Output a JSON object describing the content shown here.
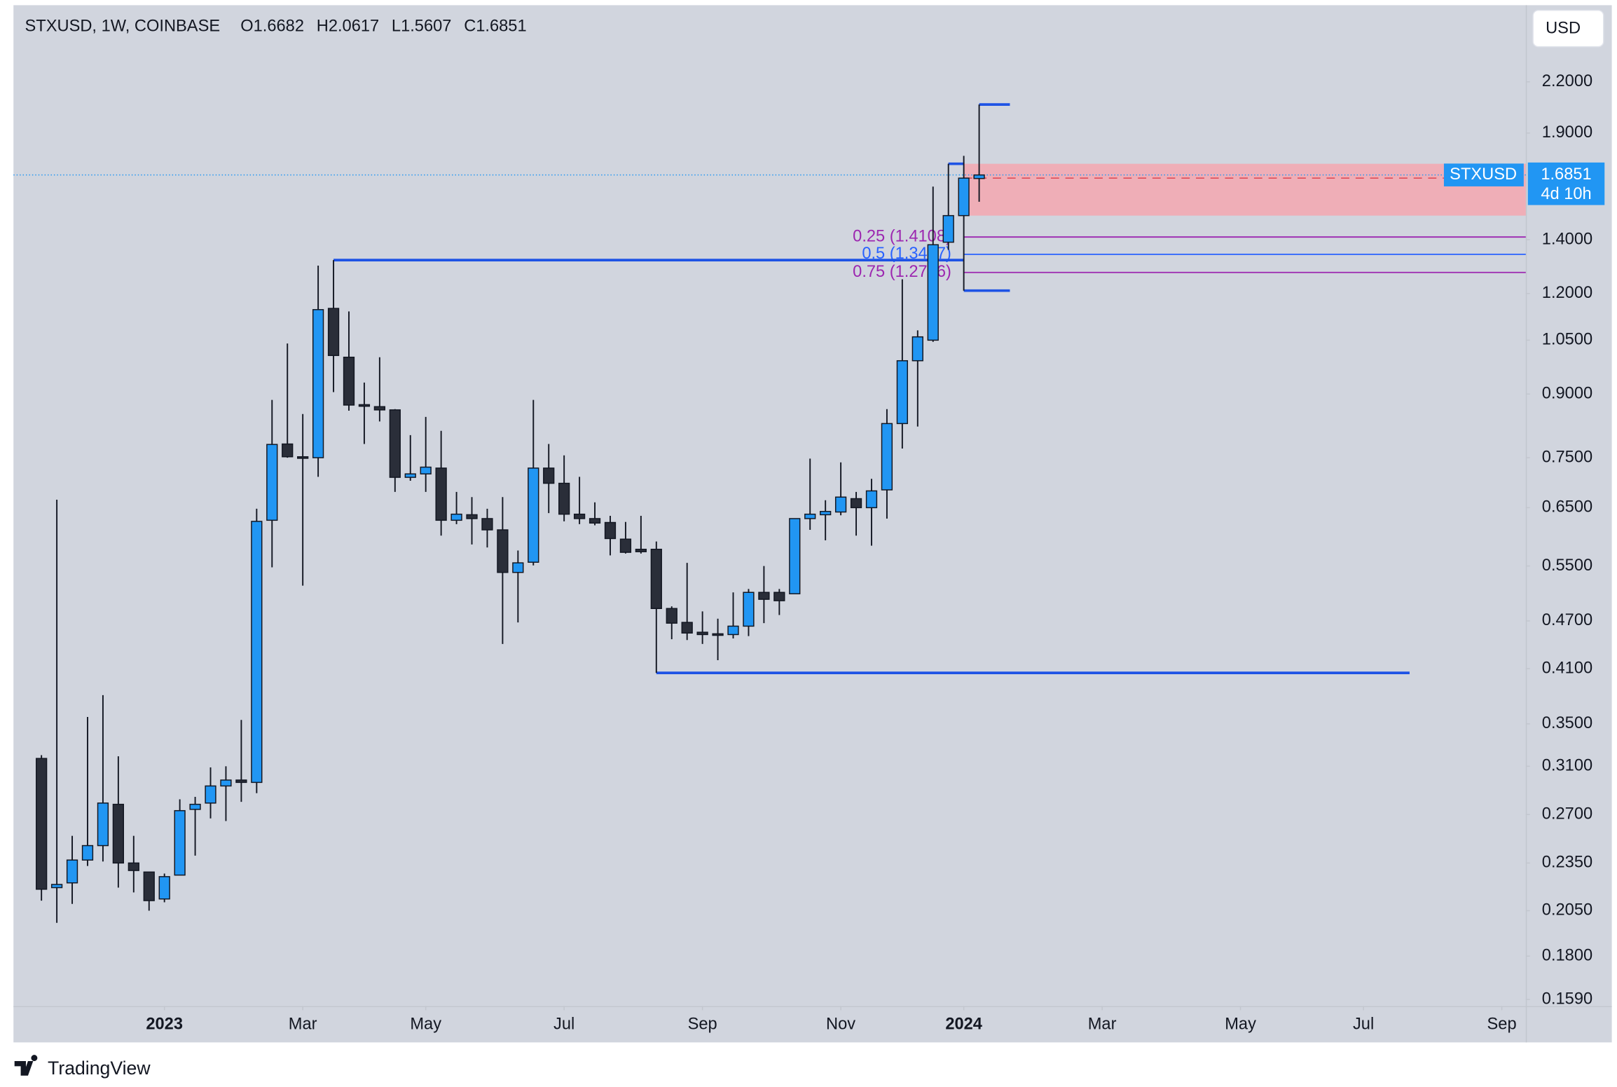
{
  "header": {
    "symbol": "STXUSD, 1W, COINBASE",
    "ohlc": [
      "O1.6682",
      "H2.0617",
      "L1.5607",
      "C1.6851"
    ]
  },
  "currency": "USD",
  "footer": "TradingView",
  "chart_data": {
    "type": "candlestick",
    "log_scale": true,
    "ylim": [
      0.156,
      2.74
    ],
    "yticks": [
      {
        "value": 2.2,
        "label": "2.2000"
      },
      {
        "value": 1.9,
        "label": "1.9000"
      },
      {
        "value": 1.4,
        "label": "1.4000"
      },
      {
        "value": 1.2,
        "label": "1.2000"
      },
      {
        "value": 1.05,
        "label": "1.0500"
      },
      {
        "value": 0.9,
        "label": "0.9000"
      },
      {
        "value": 0.75,
        "label": "0.7500"
      },
      {
        "value": 0.65,
        "label": "0.6500"
      },
      {
        "value": 0.55,
        "label": "0.5500"
      },
      {
        "value": 0.47,
        "label": "0.4700"
      },
      {
        "value": 0.41,
        "label": "0.4100"
      },
      {
        "value": 0.35,
        "label": "0.3500"
      },
      {
        "value": 0.31,
        "label": "0.3100"
      },
      {
        "value": 0.27,
        "label": "0.2700"
      },
      {
        "value": 0.235,
        "label": "0.2350"
      },
      {
        "value": 0.205,
        "label": "0.2050"
      },
      {
        "value": 0.18,
        "label": "0.1800"
      },
      {
        "value": 0.159,
        "label": "0.1590"
      }
    ],
    "xlim": [
      -1.82,
      96.56
    ],
    "xticks": [
      {
        "value": 8,
        "label": "2023"
      },
      {
        "value": 17,
        "label": "Mar"
      },
      {
        "value": 25,
        "label": "May"
      },
      {
        "value": 34,
        "label": "Jul"
      },
      {
        "value": 43,
        "label": "Sep"
      },
      {
        "value": 52,
        "label": "Nov"
      },
      {
        "value": 60,
        "label": "2024"
      },
      {
        "value": 69,
        "label": "Mar"
      },
      {
        "value": 78,
        "label": "May"
      },
      {
        "value": 86,
        "label": "Jul"
      },
      {
        "value": 95,
        "label": "Sep"
      }
    ],
    "colors": {
      "up": "#2196f3",
      "down": "#2a2e39",
      "outline": "#131722"
    },
    "candles": {
      "open": [
        0.317,
        0.219,
        0.222,
        0.237,
        0.247,
        0.278,
        0.235,
        0.229,
        0.212,
        0.227,
        0.274,
        0.279,
        0.293,
        0.298,
        0.296,
        0.627,
        0.78,
        0.752,
        0.75,
        1.15,
        1.0,
        0.873,
        0.868,
        0.86,
        0.709,
        0.716,
        0.728,
        0.627,
        0.637,
        0.63,
        0.61,
        0.54,
        0.556,
        0.728,
        0.697,
        0.638,
        0.63,
        0.623,
        0.594,
        0.577,
        0.577,
        0.487,
        0.468,
        0.455,
        0.453,
        0.452,
        0.463,
        0.51,
        0.51,
        0.508,
        0.63,
        0.637,
        0.642,
        0.667,
        0.65,
        0.684,
        0.827,
        0.99,
        1.05,
        1.39,
        1.5,
        1.6682
      ],
      "high": [
        0.32,
        0.665,
        0.254,
        0.357,
        0.38,
        0.319,
        0.254,
        0.229,
        0.228,
        0.282,
        0.284,
        0.309,
        0.31,
        0.354,
        0.648,
        0.885,
        1.04,
        0.85,
        1.3,
        1.3205,
        1.14,
        0.93,
        1.0,
        0.862,
        0.8,
        0.843,
        0.81,
        0.68,
        0.67,
        0.648,
        0.67,
        0.575,
        0.885,
        0.78,
        0.755,
        0.71,
        0.66,
        0.635,
        0.624,
        0.635,
        0.59,
        0.49,
        0.555,
        0.483,
        0.473,
        0.51,
        0.515,
        0.55,
        0.515,
        0.63,
        0.748,
        0.664,
        0.74,
        0.68,
        0.706,
        0.862,
        1.25,
        1.08,
        1.63,
        1.74,
        1.78,
        2.0617
      ],
      "low": [
        0.211,
        0.198,
        0.209,
        0.233,
        0.236,
        0.219,
        0.216,
        0.205,
        0.21,
        0.227,
        0.24,
        0.267,
        0.265,
        0.28,
        0.287,
        0.548,
        0.75,
        0.52,
        0.71,
        0.905,
        0.858,
        0.78,
        0.832,
        0.68,
        0.702,
        0.68,
        0.6,
        0.62,
        0.585,
        0.58,
        0.44,
        0.468,
        0.551,
        0.64,
        0.625,
        0.62,
        0.618,
        0.567,
        0.57,
        0.57,
        0.405,
        0.446,
        0.445,
        0.44,
        0.42,
        0.447,
        0.45,
        0.467,
        0.478,
        0.508,
        0.61,
        0.592,
        0.636,
        0.6,
        0.583,
        0.63,
        0.77,
        0.82,
        1.045,
        1.36,
        1.21,
        1.5607
      ],
      "close": [
        0.218,
        0.221,
        0.237,
        0.247,
        0.279,
        0.235,
        0.23,
        0.211,
        0.226,
        0.273,
        0.278,
        0.293,
        0.298,
        0.296,
        0.625,
        0.779,
        0.752,
        0.75,
        1.146,
        1.005,
        0.872,
        0.869,
        0.86,
        0.709,
        0.716,
        0.73,
        0.627,
        0.638,
        0.63,
        0.61,
        0.54,
        0.555,
        0.728,
        0.697,
        0.638,
        0.63,
        0.622,
        0.595,
        0.572,
        0.573,
        0.487,
        0.467,
        0.454,
        0.452,
        0.452,
        0.463,
        0.51,
        0.5,
        0.498,
        0.63,
        0.638,
        0.643,
        0.67,
        0.65,
        0.682,
        0.827,
        0.99,
        1.06,
        1.38,
        1.5,
        1.67,
        1.6851
      ]
    },
    "levels": [
      {
        "value": 1.3205,
        "x": [
          19,
          60
        ]
      },
      {
        "value": 0.405,
        "x": [
          40,
          89
        ]
      },
      {
        "value": 2.0617,
        "x": [
          61,
          63
        ]
      },
      {
        "value": 1.21,
        "x": [
          60,
          63
        ]
      },
      {
        "value": 1.74,
        "x": [
          59,
          60
        ]
      }
    ],
    "fib_levels": [
      {
        "label": "0.25 (1.4108)",
        "value": 1.4108,
        "color": "#9c27b0",
        "start": 60
      },
      {
        "label": "0.5 (1.3427)",
        "value": 1.3427,
        "color": "#2962ff",
        "start": 60
      },
      {
        "label": "0.75 (1.2746)",
        "value": 1.2746,
        "color": "#9c27b0",
        "start": 60
      }
    ],
    "zone": {
      "values": [
        1.5,
        1.74
      ],
      "start": 60,
      "color": "#f4a7b0"
    },
    "dashed_level": 1.67,
    "last_price": {
      "symbol": "STXUSD",
      "value": 1.6851,
      "countdown": "4d 10h",
      "color": "#2196f3"
    }
  }
}
